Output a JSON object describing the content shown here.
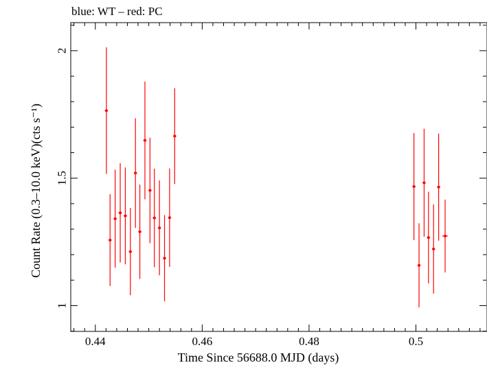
{
  "chart_data": {
    "type": "scatter",
    "title": "blue: WT – red: PC",
    "xlabel": "Time Since 56688.0 MJD (days)",
    "ylabel": "Count Rate (0.3–10.0 keV)(cts s⁻¹)",
    "xlim": [
      0.4354,
      0.5133
    ],
    "ylim": [
      0.899,
      2.11
    ],
    "x_ticks": [
      0.44,
      0.46,
      0.48,
      0.5
    ],
    "x_tick_labels": [
      "0.44",
      "0.46",
      "0.48",
      "0.5"
    ],
    "y_ticks": [
      1,
      1.5,
      2
    ],
    "y_tick_labels": [
      "1",
      "1.5",
      "2"
    ],
    "grid": false,
    "series": [
      {
        "color": "#ff0000",
        "points": [
          {
            "x": 0.44207,
            "y": 1.765,
            "xerr": 0.0003,
            "yerr_low": 0.248,
            "yerr_high": 0.248
          },
          {
            "x": 0.44276,
            "y": 1.257,
            "xerr": 0.0003,
            "yerr_low": 0.18,
            "yerr_high": 0.18
          },
          {
            "x": 0.44371,
            "y": 1.341,
            "xerr": 0.0003,
            "yerr_low": 0.192,
            "yerr_high": 0.192
          },
          {
            "x": 0.44466,
            "y": 1.364,
            "xerr": 0.0003,
            "yerr_low": 0.195,
            "yerr_high": 0.195
          },
          {
            "x": 0.44561,
            "y": 1.352,
            "xerr": 0.0003,
            "yerr_low": 0.19,
            "yerr_high": 0.19
          },
          {
            "x": 0.44656,
            "y": 1.212,
            "xerr": 0.0003,
            "yerr_low": 0.171,
            "yerr_high": 0.171
          },
          {
            "x": 0.44751,
            "y": 1.52,
            "xerr": 0.0003,
            "yerr_low": 0.215,
            "yerr_high": 0.215
          },
          {
            "x": 0.44833,
            "y": 1.29,
            "xerr": 0.0003,
            "yerr_low": 0.185,
            "yerr_high": 0.185
          },
          {
            "x": 0.44928,
            "y": 1.648,
            "xerr": 0.0003,
            "yerr_low": 0.231,
            "yerr_high": 0.231
          },
          {
            "x": 0.45023,
            "y": 1.452,
            "xerr": 0.0003,
            "yerr_low": 0.207,
            "yerr_high": 0.207
          },
          {
            "x": 0.45105,
            "y": 1.344,
            "xerr": 0.0003,
            "yerr_low": 0.193,
            "yerr_high": 0.193
          },
          {
            "x": 0.452,
            "y": 1.305,
            "xerr": 0.0003,
            "yerr_low": 0.186,
            "yerr_high": 0.186
          },
          {
            "x": 0.45295,
            "y": 1.186,
            "xerr": 0.0003,
            "yerr_low": 0.169,
            "yerr_high": 0.169
          },
          {
            "x": 0.4539,
            "y": 1.345,
            "xerr": 0.0003,
            "yerr_low": 0.193,
            "yerr_high": 0.193
          },
          {
            "x": 0.45485,
            "y": 1.665,
            "xerr": 0.0003,
            "yerr_low": 0.188,
            "yerr_high": 0.188
          },
          {
            "x": 0.49963,
            "y": 1.467,
            "xerr": 0.0003,
            "yerr_low": 0.21,
            "yerr_high": 0.21
          },
          {
            "x": 0.50058,
            "y": 1.158,
            "xerr": 0.0003,
            "yerr_low": 0.165,
            "yerr_high": 0.165
          },
          {
            "x": 0.50153,
            "y": 1.482,
            "xerr": 0.0003,
            "yerr_low": 0.212,
            "yerr_high": 0.212
          },
          {
            "x": 0.50235,
            "y": 1.267,
            "xerr": 0.0003,
            "yerr_low": 0.18,
            "yerr_high": 0.18
          },
          {
            "x": 0.5033,
            "y": 1.222,
            "xerr": 0.0003,
            "yerr_low": 0.175,
            "yerr_high": 0.175
          },
          {
            "x": 0.50425,
            "y": 1.465,
            "xerr": 0.0003,
            "yerr_low": 0.21,
            "yerr_high": 0.21
          },
          {
            "x": 0.50546,
            "y": 1.273,
            "xerr": 0.0005,
            "yerr_low": 0.143,
            "yerr_high": 0.143
          }
        ]
      }
    ]
  }
}
